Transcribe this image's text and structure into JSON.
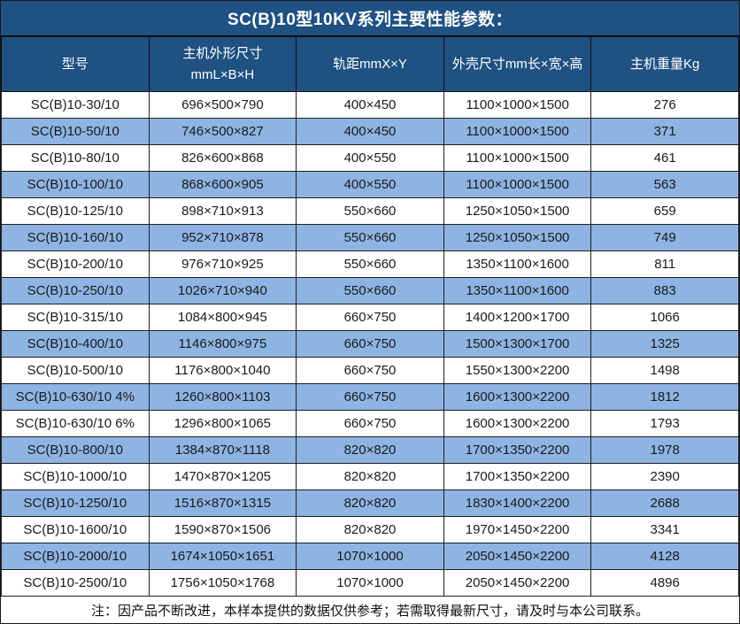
{
  "title": "SC(B)10型10KV系列主要性能参数：",
  "note": "注：因产品不断改进，本样本提供的数据仅供参考；若需取得最新尺寸，请及时与本公司联系。",
  "colors": {
    "header_bg": "#1f5182",
    "header_text": "#ffffff",
    "row_alt_bg": "#8eb4e3",
    "row_bg": "#ffffff",
    "border": "#1a1a1a",
    "body_text": "#1a1a1a"
  },
  "table": {
    "columns": [
      "型号",
      "主机外形尺寸\nmmL×B×H",
      "轨距mmX×Y",
      "外壳尺寸mm长×宽×高",
      "主机重量Kg"
    ],
    "rows": [
      [
        "SC(B)10-30/10",
        "696×500×790",
        "400×450",
        "1100×1000×1500",
        "276"
      ],
      [
        "SC(B)10-50/10",
        "746×500×827",
        "400×450",
        "1100×1000×1500",
        "371"
      ],
      [
        "SC(B)10-80/10",
        "826×600×868",
        "400×550",
        "1100×1000×1500",
        "461"
      ],
      [
        "SC(B)10-100/10",
        "868×600×905",
        "400×550",
        "1100×1000×1500",
        "563"
      ],
      [
        "SC(B)10-125/10",
        "898×710×913",
        "550×660",
        "1250×1050×1500",
        "659"
      ],
      [
        "SC(B)10-160/10",
        "952×710×878",
        "550×660",
        "1250×1050×1500",
        "749"
      ],
      [
        "SC(B)10-200/10",
        "976×710×925",
        "550×660",
        "1350×1100×1600",
        "811"
      ],
      [
        "SC(B)10-250/10",
        "1026×710×940",
        "550×660",
        "1350×1100×1600",
        "883"
      ],
      [
        "SC(B)10-315/10",
        "1084×800×945",
        "660×750",
        "1400×1200×1700",
        "1066"
      ],
      [
        "SC(B)10-400/10",
        "1146×800×975",
        "660×750",
        "1500×1300×1700",
        "1325"
      ],
      [
        "SC(B)10-500/10",
        "1176×800×1040",
        "660×750",
        "1550×1300×2200",
        "1498"
      ],
      [
        "SC(B)10-630/10 4%",
        "1260×800×1103",
        "660×750",
        "1600×1300×2200",
        "1812"
      ],
      [
        "SC(B)10-630/10 6%",
        "1296×800×1065",
        "660×750",
        "1600×1300×2200",
        "1793"
      ],
      [
        "SC(B)10-800/10",
        "1384×870×1118",
        "820×820",
        "1700×1350×2200",
        "1978"
      ],
      [
        "SC(B)10-1000/10",
        "1470×870×1205",
        "820×820",
        "1700×1350×2200",
        "2390"
      ],
      [
        "SC(B)10-1250/10",
        "1516×870×1315",
        "820×820",
        "1830×1400×2200",
        "2688"
      ],
      [
        "SC(B)10-1600/10",
        "1590×870×1506",
        "820×820",
        "1970×1450×2200",
        "3341"
      ],
      [
        "SC(B)10-2000/10",
        "1674×1050×1651",
        "1070×1000",
        "2050×1450×2200",
        "4128"
      ],
      [
        "SC(B)10-2500/10",
        "1756×1050×1768",
        "1070×1000",
        "2050×1450×2200",
        "4896"
      ]
    ]
  }
}
